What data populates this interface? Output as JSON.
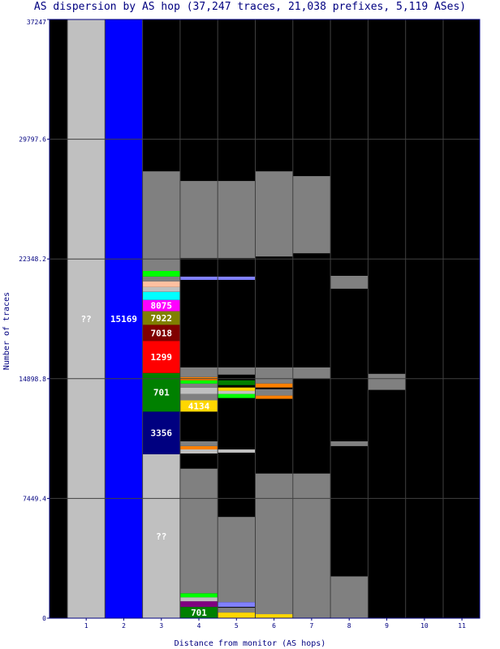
{
  "chart_data": {
    "type": "bar",
    "title": "AS dispersion by AS hop (37,247 traces, 21,038 prefixes, 5,119 ASes)",
    "xlabel": "Distance from monitor (AS hops)",
    "ylabel": "Number of traces",
    "ylim": [
      0,
      37247
    ],
    "yticks": [
      0,
      7449.4,
      14898.8,
      22348.2,
      29797.6,
      37247
    ],
    "ytick_labels": [
      "0",
      "7449.4",
      "14898.8",
      "22348.2",
      "29797.6",
      "37247"
    ],
    "categories": [
      "1",
      "2",
      "3",
      "4",
      "5",
      "6",
      "7",
      "8",
      "9",
      "10",
      "11"
    ],
    "colors": {
      "background": "#000000",
      "unknown": "#c0c0c0",
      "other": "#808080",
      "frame": "#000080"
    },
    "segments": [
      {
        "hop": "1",
        "y0": 0,
        "y1": 37247,
        "color": "#c0c0c0",
        "label": "??"
      },
      {
        "hop": "2",
        "y0": 0,
        "y1": 37247,
        "color": "#0000ff",
        "label": "15169"
      },
      {
        "hop": "3",
        "y0": 0,
        "y1": 10200,
        "color": "#c0c0c0",
        "label": "??"
      },
      {
        "hop": "3",
        "y0": 10200,
        "y1": 12850,
        "color": "#000080",
        "label": "3356"
      },
      {
        "hop": "3",
        "y0": 12850,
        "y1": 15250,
        "color": "#008000",
        "label": "701"
      },
      {
        "hop": "3",
        "y0": 15250,
        "y1": 17250,
        "color": "#ff0000",
        "label": "1299"
      },
      {
        "hop": "3",
        "y0": 17250,
        "y1": 18250,
        "color": "#800000",
        "label": "7018"
      },
      {
        "hop": "3",
        "y0": 18250,
        "y1": 19100,
        "color": "#808000",
        "label": "7922"
      },
      {
        "hop": "3",
        "y0": 19100,
        "y1": 19800,
        "color": "#ff00ff",
        "label": "8075"
      },
      {
        "hop": "3",
        "y0": 19800,
        "y1": 20300,
        "color": "#00ffff",
        "label": ""
      },
      {
        "hop": "3",
        "y0": 20300,
        "y1": 20600,
        "color": "#c0c0c0",
        "label": ""
      },
      {
        "hop": "3",
        "y0": 20600,
        "y1": 20950,
        "color": "#ffc0a0",
        "label": ""
      },
      {
        "hop": "3",
        "y0": 20950,
        "y1": 21250,
        "color": "#808080",
        "label": ""
      },
      {
        "hop": "3",
        "y0": 21250,
        "y1": 21600,
        "color": "#00ff00",
        "label": ""
      },
      {
        "hop": "3",
        "y0": 21600,
        "y1": 27800,
        "color": "#808080",
        "label": ""
      },
      {
        "hop": "4",
        "y0": 0,
        "y1": 700,
        "color": "#008000",
        "label": "701"
      },
      {
        "hop": "4",
        "y0": 700,
        "y1": 1050,
        "color": "#800080",
        "label": ""
      },
      {
        "hop": "4",
        "y0": 1050,
        "y1": 1300,
        "color": "#c0c0c0",
        "label": ""
      },
      {
        "hop": "4",
        "y0": 1300,
        "y1": 1550,
        "color": "#00ff00",
        "label": ""
      },
      {
        "hop": "4",
        "y0": 1550,
        "y1": 9300,
        "color": "#808080",
        "label": ""
      },
      {
        "hop": "4",
        "y0": 10250,
        "y1": 10500,
        "color": "#c0c0c0",
        "label": ""
      },
      {
        "hop": "4",
        "y0": 10500,
        "y1": 10700,
        "color": "#ff8000",
        "label": ""
      },
      {
        "hop": "4",
        "y0": 10700,
        "y1": 11000,
        "color": "#808080",
        "label": ""
      },
      {
        "hop": "4",
        "y0": 12850,
        "y1": 13550,
        "color": "#ffd700",
        "label": "4134"
      },
      {
        "hop": "4",
        "y0": 13550,
        "y1": 13950,
        "color": "#808080",
        "label": ""
      },
      {
        "hop": "4",
        "y0": 13950,
        "y1": 14350,
        "color": "#c0c0c0",
        "label": ""
      },
      {
        "hop": "4",
        "y0": 14350,
        "y1": 14600,
        "color": "#808080",
        "label": ""
      },
      {
        "hop": "4",
        "y0": 14600,
        "y1": 14800,
        "color": "#00ff00",
        "label": ""
      },
      {
        "hop": "4",
        "y0": 14800,
        "y1": 15000,
        "color": "#ff8000",
        "label": ""
      },
      {
        "hop": "4",
        "y0": 15000,
        "y1": 15600,
        "color": "#808080",
        "label": ""
      },
      {
        "hop": "4",
        "y0": 21050,
        "y1": 21250,
        "color": "#8080ff",
        "label": ""
      },
      {
        "hop": "4",
        "y0": 22400,
        "y1": 27200,
        "color": "#808080",
        "label": ""
      },
      {
        "hop": "5",
        "y0": 0,
        "y1": 350,
        "color": "#ffd700",
        "label": ""
      },
      {
        "hop": "5",
        "y0": 350,
        "y1": 650,
        "color": "#808080",
        "label": ""
      },
      {
        "hop": "5",
        "y0": 700,
        "y1": 1000,
        "color": "#8080ff",
        "label": ""
      },
      {
        "hop": "5",
        "y0": 1000,
        "y1": 6300,
        "color": "#808080",
        "label": ""
      },
      {
        "hop": "5",
        "y0": 10300,
        "y1": 10500,
        "color": "#c0c0c0",
        "label": ""
      },
      {
        "hop": "5",
        "y0": 13700,
        "y1": 13950,
        "color": "#00ff00",
        "label": ""
      },
      {
        "hop": "5",
        "y0": 13950,
        "y1": 14150,
        "color": "#c0c0c0",
        "label": ""
      },
      {
        "hop": "5",
        "y0": 14150,
        "y1": 14350,
        "color": "#ffd700",
        "label": ""
      },
      {
        "hop": "5",
        "y0": 14500,
        "y1": 14800,
        "color": "#008000",
        "label": ""
      },
      {
        "hop": "5",
        "y0": 15150,
        "y1": 15600,
        "color": "#808080",
        "label": ""
      },
      {
        "hop": "5",
        "y0": 21050,
        "y1": 21250,
        "color": "#8080ff",
        "label": ""
      },
      {
        "hop": "5",
        "y0": 22400,
        "y1": 27200,
        "color": "#808080",
        "label": ""
      },
      {
        "hop": "6",
        "y0": 0,
        "y1": 250,
        "color": "#ffd700",
        "label": ""
      },
      {
        "hop": "6",
        "y0": 250,
        "y1": 9000,
        "color": "#808080",
        "label": ""
      },
      {
        "hop": "6",
        "y0": 13650,
        "y1": 13850,
        "color": "#ff8000",
        "label": ""
      },
      {
        "hop": "6",
        "y0": 13850,
        "y1": 14250,
        "color": "#808080",
        "label": ""
      },
      {
        "hop": "6",
        "y0": 14350,
        "y1": 14600,
        "color": "#ff8000",
        "label": ""
      },
      {
        "hop": "6",
        "y0": 14600,
        "y1": 15600,
        "color": "#808080",
        "label": ""
      },
      {
        "hop": "6",
        "y0": 22500,
        "y1": 27800,
        "color": "#808080",
        "label": ""
      },
      {
        "hop": "7",
        "y0": 0,
        "y1": 9000,
        "color": "#808080",
        "label": ""
      },
      {
        "hop": "7",
        "y0": 14900,
        "y1": 15600,
        "color": "#808080",
        "label": ""
      },
      {
        "hop": "7",
        "y0": 22700,
        "y1": 27500,
        "color": "#808080",
        "label": ""
      },
      {
        "hop": "8",
        "y0": 0,
        "y1": 2600,
        "color": "#808080",
        "label": ""
      },
      {
        "hop": "8",
        "y0": 10700,
        "y1": 11000,
        "color": "#808080",
        "label": ""
      },
      {
        "hop": "8",
        "y0": 20500,
        "y1": 21300,
        "color": "#808080",
        "label": ""
      },
      {
        "hop": "9",
        "y0": 14200,
        "y1": 15200,
        "color": "#808080",
        "label": ""
      }
    ]
  }
}
